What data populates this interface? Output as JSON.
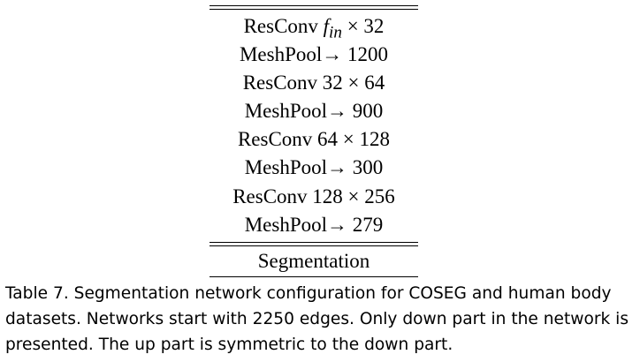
{
  "table": {
    "rows": [
      {
        "prefix": "ResConv ",
        "math": "f",
        "sub": "in",
        "suffix": " × 32"
      },
      {
        "prefix": "MeshPool",
        "math": "",
        "sub": "",
        "suffix": "→ 1200"
      },
      {
        "prefix": "ResConv ",
        "math": "",
        "sub": "",
        "suffix": "32 × 64"
      },
      {
        "prefix": "MeshPool",
        "math": "",
        "sub": "",
        "suffix": "→ 900"
      },
      {
        "prefix": "ResConv ",
        "math": "",
        "sub": "",
        "suffix": "64 × 128"
      },
      {
        "prefix": "MeshPool",
        "math": "",
        "sub": "",
        "suffix": "→ 300"
      },
      {
        "prefix": "ResConv ",
        "math": "",
        "sub": "",
        "suffix": "128 × 256"
      },
      {
        "prefix": "MeshPool",
        "math": "",
        "sub": "",
        "suffix": "→ 279"
      }
    ],
    "footer": "Segmentation"
  },
  "caption": {
    "line1": "Table 7.  Segmentation network configuration for COSEG and human body",
    "line2": "datasets. Networks start with 2250 edges. Only down part in the network is",
    "line3": "presented. The up part is symmetric to the down part."
  }
}
